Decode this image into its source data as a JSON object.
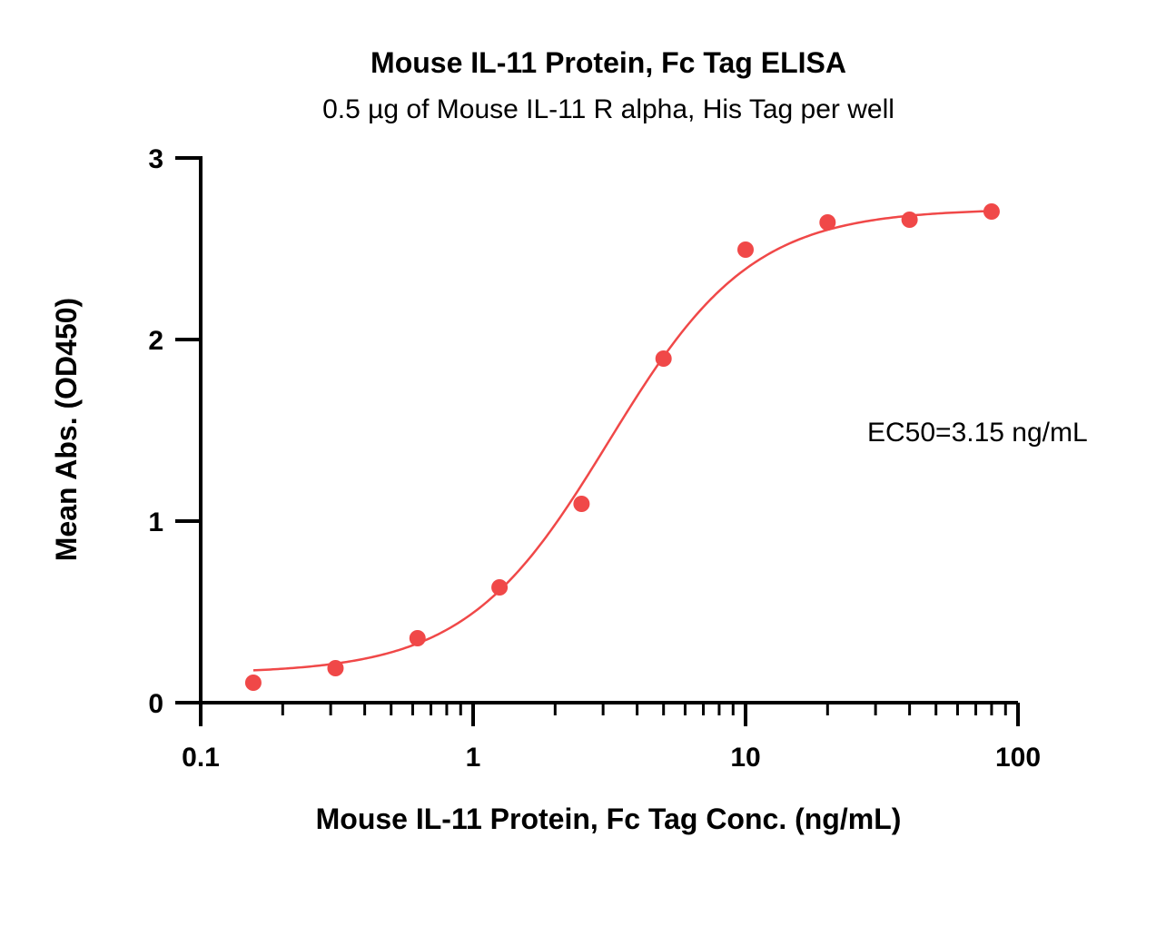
{
  "chart_data": {
    "type": "scatter",
    "title": "Mouse IL-11 Protein, Fc Tag  ELISA",
    "subtitle": "0.5 µg of Mouse IL-11 R alpha, His Tag per well",
    "xlabel": "Mouse IL-11 Protein, Fc Tag  Conc. (ng/mL)",
    "ylabel": "Mean Abs. (OD450)",
    "xscale": "log",
    "xlim": [
      0.1,
      100
    ],
    "ylim": [
      0,
      3
    ],
    "x_ticks": [
      0.1,
      1,
      10,
      100
    ],
    "x_tick_labels": [
      "0.1",
      "1",
      "10",
      "100"
    ],
    "y_ticks": [
      0,
      1,
      2,
      3
    ],
    "y_tick_labels": [
      "0",
      "1",
      "2",
      "3"
    ],
    "grid": false,
    "series": [
      {
        "x": [
          0.156,
          0.3125,
          0.625,
          1.25,
          2.5,
          5,
          10,
          20,
          40,
          80
        ],
        "y": [
          0.11,
          0.19,
          0.355,
          0.635,
          1.095,
          1.895,
          2.495,
          2.645,
          2.66,
          2.705
        ],
        "color": "#f04848"
      }
    ],
    "fit_curve": {
      "type": "4PL",
      "bottom": 0.16,
      "top": 2.72,
      "ec50": 3.15,
      "hill": 1.65,
      "x_range": [
        0.156,
        80
      ],
      "color": "#f04848"
    },
    "annotations": [
      {
        "text": "EC50=3.15 ng/mL"
      }
    ]
  }
}
